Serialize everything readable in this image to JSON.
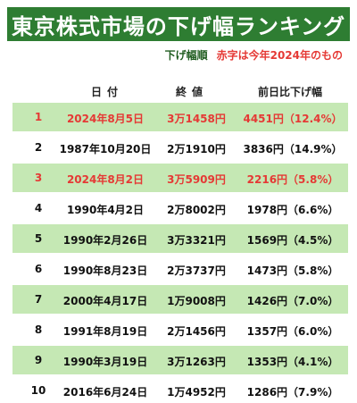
{
  "title": "東京株式市場の下げ幅ランキング",
  "legend": {
    "order": "下げ幅順",
    "red_note": "赤字は今年2024年のもの"
  },
  "columns": {
    "date": "日付",
    "close": "終値",
    "drop": "前日比下げ幅"
  },
  "rows": [
    {
      "rank": "1",
      "date": "2024年8月5日",
      "close": "3万1458円",
      "drop": "4451円（12.4%）",
      "highlight": true,
      "is2024": true
    },
    {
      "rank": "2",
      "date": "1987年10月20日",
      "close": "2万1910円",
      "drop": "3836円（14.9%）",
      "highlight": false,
      "is2024": false
    },
    {
      "rank": "3",
      "date": "2024年8月2日",
      "close": "3万5909円",
      "drop": "2216円（5.8%）",
      "highlight": true,
      "is2024": true
    },
    {
      "rank": "4",
      "date": "1990年4月2日",
      "close": "2万8002円",
      "drop": "1978円（6.6%）",
      "highlight": false,
      "is2024": false
    },
    {
      "rank": "5",
      "date": "1990年2月26日",
      "close": "3万3321円",
      "drop": "1569円（4.5%）",
      "highlight": true,
      "is2024": false
    },
    {
      "rank": "6",
      "date": "1990年8月23日",
      "close": "2万3737円",
      "drop": "1473円（5.8%）",
      "highlight": false,
      "is2024": false
    },
    {
      "rank": "7",
      "date": "2000年4月17日",
      "close": "1万9008円",
      "drop": "1426円（7.0%）",
      "highlight": true,
      "is2024": false
    },
    {
      "rank": "8",
      "date": "1991年8月19日",
      "close": "2万1456円",
      "drop": "1357円（6.0%）",
      "highlight": false,
      "is2024": false
    },
    {
      "rank": "9",
      "date": "1990年3月19日",
      "close": "3万1263円",
      "drop": "1353円（4.1%）",
      "highlight": true,
      "is2024": false
    },
    {
      "rank": "10",
      "date": "2016年6月24日",
      "close": "1万4952円",
      "drop": "1286円（7.9%）",
      "highlight": false,
      "is2024": false
    }
  ],
  "colors": {
    "title_bg": "#2e7d32",
    "row_highlight": "#c5e8b4",
    "red_text": "#e53935"
  }
}
